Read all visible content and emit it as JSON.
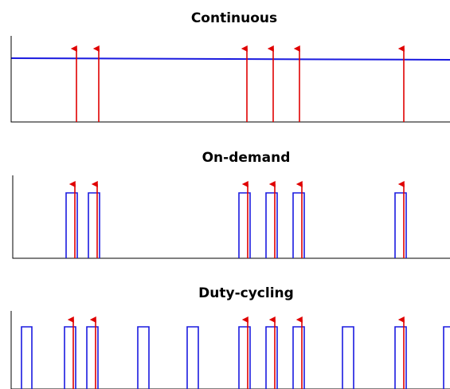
{
  "panels": [
    {
      "title": "Continuous"
    },
    {
      "title": "On-demand"
    },
    {
      "title": "Duty-cycling"
    }
  ]
}
